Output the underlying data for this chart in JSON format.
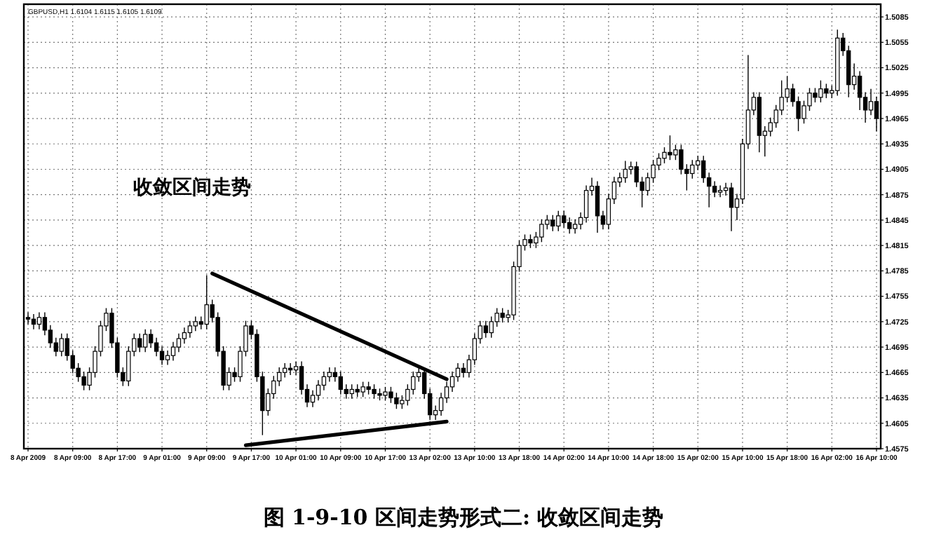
{
  "chart_data": {
    "type": "candlestick",
    "title": "图 1-9-10 区间走势形式二: 收敛区间走势",
    "annotations": [
      "GBPUSD,H1 1.6104 1.6115 1.6105 1.6109",
      "收敛区间走势"
    ],
    "categories": [
      "8 Apr 2009",
      null,
      null,
      null,
      null,
      null,
      null,
      null,
      "8 Apr 09:00",
      null,
      null,
      null,
      null,
      null,
      null,
      null,
      "8 Apr 17:00",
      null,
      null,
      null,
      null,
      null,
      null,
      null,
      "9 Apr 01:00",
      null,
      null,
      null,
      null,
      null,
      null,
      null,
      "9 Apr 09:00",
      null,
      null,
      null,
      null,
      null,
      null,
      null,
      "9 Apr 17:00",
      null,
      null,
      null,
      null,
      null,
      null,
      null,
      "10 Apr 01:00",
      null,
      null,
      null,
      null,
      null,
      null,
      null,
      "10 Apr 09:00",
      null,
      null,
      null,
      null,
      null,
      null,
      null,
      "10 Apr 17:00",
      null,
      null,
      null,
      null,
      null,
      null,
      null,
      "13 Apr 02:00",
      null,
      null,
      null,
      null,
      null,
      null,
      null,
      "13 Apr 10:00",
      null,
      null,
      null,
      null,
      null,
      null,
      null,
      "13 Apr 18:00",
      null,
      null,
      null,
      null,
      null,
      null,
      null,
      "14 Apr 02:00",
      null,
      null,
      null,
      null,
      null,
      null,
      null,
      "14 Apr 10:00",
      null,
      null,
      null,
      null,
      null,
      null,
      null,
      "14 Apr 18:00",
      null,
      null,
      null,
      null,
      null,
      null,
      null,
      "15 Apr 02:00",
      null,
      null,
      null,
      null,
      null,
      null,
      null,
      "15 Apr 10:00",
      null,
      null,
      null,
      null,
      null,
      null,
      null,
      "15 Apr 18:00",
      null,
      null,
      null,
      null,
      null,
      null,
      null,
      "16 Apr 02:00",
      null,
      null,
      null,
      null,
      null,
      null,
      null,
      "16 Apr 10:00"
    ],
    "ohlc": [
      [
        1.473,
        1.4736,
        1.4722,
        1.4728
      ],
      [
        1.4728,
        1.4734,
        1.4716,
        1.4722
      ],
      [
        1.4722,
        1.4736,
        1.4716,
        1.473
      ],
      [
        1.473,
        1.4736,
        1.4709,
        1.4715
      ],
      [
        1.4715,
        1.4721,
        1.4694,
        1.47
      ],
      [
        1.47,
        1.4706,
        1.4684,
        1.469
      ],
      [
        1.469,
        1.4711,
        1.4684,
        1.4705
      ],
      [
        1.4705,
        1.4711,
        1.4679,
        1.4685
      ],
      [
        1.4685,
        1.4691,
        1.4664,
        1.467
      ],
      [
        1.467,
        1.4676,
        1.4654,
        1.466
      ],
      [
        1.466,
        1.4666,
        1.4644,
        1.465
      ],
      [
        1.465,
        1.4671,
        1.4644,
        1.4665
      ],
      [
        1.4665,
        1.4696,
        1.4659,
        1.469
      ],
      [
        1.469,
        1.4726,
        1.4684,
        1.472
      ],
      [
        1.472,
        1.4741,
        1.4714,
        1.4735
      ],
      [
        1.4735,
        1.4741,
        1.4694,
        1.47
      ],
      [
        1.47,
        1.4706,
        1.4659,
        1.4665
      ],
      [
        1.4665,
        1.4671,
        1.4649,
        1.4655
      ],
      [
        1.4655,
        1.4696,
        1.4649,
        1.469
      ],
      [
        1.469,
        1.4711,
        1.4684,
        1.4705
      ],
      [
        1.4705,
        1.4711,
        1.4689,
        1.4695
      ],
      [
        1.4695,
        1.4716,
        1.4689,
        1.471
      ],
      [
        1.471,
        1.4716,
        1.4694,
        1.47
      ],
      [
        1.47,
        1.4706,
        1.4684,
        1.469
      ],
      [
        1.469,
        1.4696,
        1.4674,
        1.468
      ],
      [
        1.468,
        1.4691,
        1.4674,
        1.4685
      ],
      [
        1.4685,
        1.4701,
        1.4679,
        1.4695
      ],
      [
        1.4695,
        1.4711,
        1.4689,
        1.4705
      ],
      [
        1.4705,
        1.4718,
        1.4699,
        1.4712
      ],
      [
        1.4712,
        1.4726,
        1.4706,
        1.472
      ],
      [
        1.472,
        1.4731,
        1.4714,
        1.4725
      ],
      [
        1.4725,
        1.4731,
        1.4716,
        1.4722
      ],
      [
        1.4722,
        1.478,
        1.4716,
        1.4745
      ],
      [
        1.4745,
        1.4751,
        1.4724,
        1.473
      ],
      [
        1.473,
        1.4736,
        1.4684,
        1.469
      ],
      [
        1.469,
        1.4696,
        1.4644,
        1.465
      ],
      [
        1.465,
        1.4671,
        1.4644,
        1.4665
      ],
      [
        1.4665,
        1.4671,
        1.4654,
        1.466
      ],
      [
        1.466,
        1.4696,
        1.4654,
        1.469
      ],
      [
        1.469,
        1.4726,
        1.4684,
        1.472
      ],
      [
        1.472,
        1.4726,
        1.4704,
        1.471
      ],
      [
        1.471,
        1.4716,
        1.4654,
        1.466
      ],
      [
        1.466,
        1.4666,
        1.4591,
        1.462
      ],
      [
        1.462,
        1.4646,
        1.4614,
        1.464
      ],
      [
        1.464,
        1.4661,
        1.4634,
        1.4655
      ],
      [
        1.4655,
        1.4671,
        1.4649,
        1.4665
      ],
      [
        1.4665,
        1.4676,
        1.4659,
        1.467
      ],
      [
        1.467,
        1.4676,
        1.4662,
        1.4668
      ],
      [
        1.4668,
        1.4678,
        1.4662,
        1.4672
      ],
      [
        1.4672,
        1.4678,
        1.4639,
        1.4645
      ],
      [
        1.4645,
        1.4651,
        1.4624,
        1.463
      ],
      [
        1.463,
        1.4644,
        1.4624,
        1.4638
      ],
      [
        1.4638,
        1.4656,
        1.4632,
        1.465
      ],
      [
        1.465,
        1.4666,
        1.4644,
        1.466
      ],
      [
        1.466,
        1.4671,
        1.4654,
        1.4665
      ],
      [
        1.4665,
        1.4671,
        1.4654,
        1.466
      ],
      [
        1.466,
        1.4666,
        1.4639,
        1.4645
      ],
      [
        1.4645,
        1.4651,
        1.4634,
        1.464
      ],
      [
        1.464,
        1.4651,
        1.4634,
        1.4645
      ],
      [
        1.4645,
        1.4651,
        1.4636,
        1.4642
      ],
      [
        1.4642,
        1.4654,
        1.4636,
        1.4648
      ],
      [
        1.4648,
        1.4654,
        1.4639,
        1.4645
      ],
      [
        1.4645,
        1.4651,
        1.4634,
        1.464
      ],
      [
        1.464,
        1.4646,
        1.4632,
        1.4638
      ],
      [
        1.4638,
        1.4648,
        1.4632,
        1.4642
      ],
      [
        1.4642,
        1.4648,
        1.4629,
        1.4635
      ],
      [
        1.4635,
        1.4641,
        1.4622,
        1.4628
      ],
      [
        1.4628,
        1.4638,
        1.4622,
        1.4632
      ],
      [
        1.4632,
        1.4651,
        1.4626,
        1.4645
      ],
      [
        1.4645,
        1.4666,
        1.4639,
        1.466
      ],
      [
        1.466,
        1.4671,
        1.4654,
        1.4665
      ],
      [
        1.4665,
        1.4671,
        1.4634,
        1.464
      ],
      [
        1.464,
        1.4646,
        1.4609,
        1.4615
      ],
      [
        1.4615,
        1.4626,
        1.4609,
        1.462
      ],
      [
        1.462,
        1.4641,
        1.4614,
        1.4635
      ],
      [
        1.4635,
        1.4654,
        1.4629,
        1.4648
      ],
      [
        1.4648,
        1.4666,
        1.4642,
        1.466
      ],
      [
        1.466,
        1.4676,
        1.4654,
        1.467
      ],
      [
        1.467,
        1.4676,
        1.4659,
        1.4665
      ],
      [
        1.4665,
        1.4686,
        1.4659,
        1.468
      ],
      [
        1.468,
        1.4711,
        1.4674,
        1.4705
      ],
      [
        1.4705,
        1.4726,
        1.4699,
        1.472
      ],
      [
        1.472,
        1.4726,
        1.4706,
        1.4712
      ],
      [
        1.4712,
        1.4731,
        1.4706,
        1.4725
      ],
      [
        1.4725,
        1.4741,
        1.4719,
        1.4735
      ],
      [
        1.4735,
        1.4741,
        1.4724,
        1.473
      ],
      [
        1.473,
        1.4739,
        1.4724,
        1.4733
      ],
      [
        1.4733,
        1.4796,
        1.4727,
        1.479
      ],
      [
        1.479,
        1.4821,
        1.4784,
        1.4815
      ],
      [
        1.4815,
        1.4828,
        1.4809,
        1.4822
      ],
      [
        1.4822,
        1.4828,
        1.4812,
        1.4818
      ],
      [
        1.4818,
        1.4831,
        1.4812,
        1.4825
      ],
      [
        1.4825,
        1.4846,
        1.4819,
        1.484
      ],
      [
        1.484,
        1.4851,
        1.4834,
        1.4845
      ],
      [
        1.4845,
        1.4851,
        1.4832,
        1.4838
      ],
      [
        1.4838,
        1.4856,
        1.4832,
        1.485
      ],
      [
        1.485,
        1.4856,
        1.4836,
        1.4842
      ],
      [
        1.4842,
        1.4848,
        1.4829,
        1.4835
      ],
      [
        1.4835,
        1.4846,
        1.4829,
        1.484
      ],
      [
        1.484,
        1.4854,
        1.4834,
        1.4848
      ],
      [
        1.4848,
        1.4886,
        1.4842,
        1.488
      ],
      [
        1.488,
        1.4895,
        1.4874,
        1.4885
      ],
      [
        1.4885,
        1.4891,
        1.483,
        1.485
      ],
      [
        1.485,
        1.4856,
        1.4834,
        1.484
      ],
      [
        1.484,
        1.4876,
        1.4834,
        1.487
      ],
      [
        1.487,
        1.4896,
        1.4864,
        1.489
      ],
      [
        1.489,
        1.4901,
        1.4884,
        1.4895
      ],
      [
        1.4895,
        1.4915,
        1.4889,
        1.4905
      ],
      [
        1.4905,
        1.4914,
        1.4899,
        1.4908
      ],
      [
        1.4908,
        1.4914,
        1.4884,
        1.489
      ],
      [
        1.489,
        1.4896,
        1.486,
        1.488
      ],
      [
        1.488,
        1.4901,
        1.4874,
        1.4895
      ],
      [
        1.4895,
        1.4916,
        1.4889,
        1.491
      ],
      [
        1.491,
        1.4924,
        1.4904,
        1.4918
      ],
      [
        1.4918,
        1.4931,
        1.4912,
        1.4925
      ],
      [
        1.4925,
        1.4945,
        1.4916,
        1.4922
      ],
      [
        1.4922,
        1.4934,
        1.4916,
        1.4928
      ],
      [
        1.4928,
        1.4934,
        1.4899,
        1.4905
      ],
      [
        1.4905,
        1.4911,
        1.488,
        1.49
      ],
      [
        1.49,
        1.4916,
        1.4894,
        1.491
      ],
      [
        1.491,
        1.4921,
        1.4904,
        1.4915
      ],
      [
        1.4915,
        1.4921,
        1.4889,
        1.4895
      ],
      [
        1.4895,
        1.4901,
        1.486,
        1.4885
      ],
      [
        1.4885,
        1.4891,
        1.4872,
        1.4878
      ],
      [
        1.4878,
        1.4886,
        1.4872,
        1.488
      ],
      [
        1.488,
        1.4889,
        1.4874,
        1.4883
      ],
      [
        1.4883,
        1.4889,
        1.4832,
        1.486
      ],
      [
        1.486,
        1.4876,
        1.4845,
        1.487
      ],
      [
        1.487,
        1.4941,
        1.4864,
        1.4935
      ],
      [
        1.4935,
        1.504,
        1.4929,
        1.4975
      ],
      [
        1.4975,
        1.4996,
        1.4969,
        1.499
      ],
      [
        1.499,
        1.4996,
        1.4925,
        1.4945
      ],
      [
        1.4945,
        1.4956,
        1.492,
        1.495
      ],
      [
        1.495,
        1.4966,
        1.4944,
        1.496
      ],
      [
        1.496,
        1.4981,
        1.4954,
        1.4975
      ],
      [
        1.4975,
        1.501,
        1.4969,
        1.499
      ],
      [
        1.499,
        1.5015,
        1.4984,
        1.5
      ],
      [
        1.5,
        1.5006,
        1.4979,
        1.4985
      ],
      [
        1.4985,
        1.4991,
        1.495,
        1.4965
      ],
      [
        1.4965,
        1.4986,
        1.4959,
        1.498
      ],
      [
        1.498,
        1.5001,
        1.4974,
        1.4995
      ],
      [
        1.4995,
        1.5001,
        1.4984,
        1.499
      ],
      [
        1.499,
        1.501,
        1.4984,
        1.5
      ],
      [
        1.5,
        1.5006,
        1.4989,
        1.4995
      ],
      [
        1.4995,
        1.5004,
        1.4989,
        1.4998
      ],
      [
        1.4998,
        1.507,
        1.4992,
        1.506
      ],
      [
        1.506,
        1.5066,
        1.5039,
        1.5045
      ],
      [
        1.5045,
        1.5051,
        1.499,
        1.5005
      ],
      [
        1.5005,
        1.503,
        1.4999,
        1.5015
      ],
      [
        1.5015,
        1.5021,
        1.4975,
        1.499
      ],
      [
        1.499,
        1.4996,
        1.496,
        1.4975
      ],
      [
        1.4975,
        1.5,
        1.4969,
        1.4985
      ],
      [
        1.4985,
        1.4991,
        1.495,
        1.4965
      ]
    ],
    "series": [
      {
        "type": "line",
        "color": "#000000",
        "values": [
          null,
          null,
          null,
          null,
          null,
          null,
          null,
          null,
          null,
          null,
          null,
          null,
          null,
          null,
          null,
          null,
          null,
          null,
          null,
          null,
          null,
          null,
          null,
          null,
          null,
          null,
          null,
          null,
          null,
          null,
          null,
          null,
          null,
          1.4782,
          null,
          null,
          null,
          null,
          null,
          null,
          null,
          null,
          null,
          null,
          null,
          null,
          null,
          null,
          null,
          null,
          null,
          null,
          null,
          null,
          null,
          null,
          null,
          null,
          null,
          null,
          null,
          null,
          null,
          null,
          null,
          null,
          null,
          null,
          null,
          null,
          null,
          null,
          null,
          null,
          null,
          1.4657,
          null,
          null,
          null,
          null,
          null,
          null,
          null,
          null,
          null,
          null,
          null,
          null,
          null,
          null,
          null,
          null,
          null,
          null,
          null,
          null,
          null,
          null,
          null,
          null,
          null,
          null,
          null,
          null,
          null,
          null,
          null,
          null,
          null,
          null,
          null,
          null,
          null,
          null,
          null,
          null,
          null,
          null,
          null,
          null,
          null,
          null,
          null,
          null,
          null,
          null,
          null,
          null,
          null,
          null,
          null,
          null,
          null,
          null,
          null,
          null,
          null,
          null,
          null,
          null,
          null,
          null,
          null,
          null,
          null,
          null,
          null,
          null,
          null,
          null,
          null,
          null,
          null
        ]
      },
      {
        "type": "line",
        "color": "#000000",
        "values": [
          null,
          null,
          null,
          null,
          null,
          null,
          null,
          null,
          null,
          null,
          null,
          null,
          null,
          null,
          null,
          null,
          null,
          null,
          null,
          null,
          null,
          null,
          null,
          null,
          null,
          null,
          null,
          null,
          null,
          null,
          null,
          null,
          null,
          null,
          null,
          null,
          null,
          null,
          null,
          1.4579,
          null,
          null,
          null,
          null,
          null,
          null,
          null,
          null,
          null,
          null,
          null,
          null,
          null,
          null,
          null,
          null,
          null,
          null,
          null,
          null,
          null,
          null,
          null,
          null,
          null,
          null,
          null,
          null,
          null,
          null,
          null,
          null,
          null,
          null,
          null,
          1.4607,
          null,
          null,
          null,
          null,
          null,
          null,
          null,
          null,
          null,
          null,
          null,
          null,
          null,
          null,
          null,
          null,
          null,
          null,
          null,
          null,
          null,
          null,
          null,
          null,
          null,
          null,
          null,
          null,
          null,
          null,
          null,
          null,
          null,
          null,
          null,
          null,
          null,
          null,
          null,
          null,
          null,
          null,
          null,
          null,
          null,
          null,
          null,
          null,
          null,
          null,
          null,
          null,
          null,
          null,
          null,
          null,
          null,
          null,
          null,
          null,
          null,
          null,
          null,
          null,
          null,
          null,
          null,
          null,
          null,
          null,
          null,
          null,
          null,
          null,
          null,
          null,
          null
        ]
      }
    ],
    "ylim": [
      1.4575,
      1.51
    ],
    "yticks": [
      1.4575,
      1.4605,
      1.4635,
      1.4665,
      1.4695,
      1.4725,
      1.4755,
      1.4785,
      1.4815,
      1.4845,
      1.4875,
      1.4905,
      1.4935,
      1.4965,
      1.4995,
      1.5025,
      1.5055,
      1.5085
    ],
    "grid": true
  }
}
